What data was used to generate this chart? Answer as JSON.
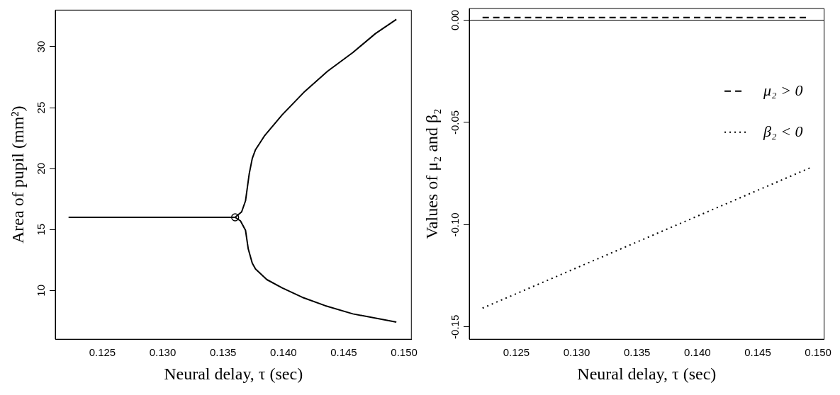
{
  "chart_data": [
    {
      "type": "line",
      "xlabel": "Neural delay, τ (sec)",
      "ylabel": "Area of pupil (mm²)",
      "xlim": [
        0.1211,
        0.1506
      ],
      "ylim": [
        6,
        33
      ],
      "xticks": [
        {
          "value": 0.125,
          "label": "0.125"
        },
        {
          "value": 0.13,
          "label": "0.130"
        },
        {
          "value": 0.135,
          "label": "0.135"
        },
        {
          "value": 0.14,
          "label": "0.140"
        },
        {
          "value": 0.145,
          "label": "0.145"
        },
        {
          "value": 0.15,
          "label": "0.150"
        }
      ],
      "yticks": [
        10,
        15,
        20,
        25,
        30
      ],
      "grid": false,
      "legend": false,
      "series": [
        {
          "type": "line",
          "color": "#000000",
          "line_style": "solid",
          "marker": "none",
          "x": [
            0.1222,
            0.136
          ],
          "values": [
            16.0,
            16.0
          ]
        },
        {
          "type": "line",
          "color": "#000000",
          "line_style": "solid",
          "marker": "none",
          "x": [
            0.136,
            0.13654,
            0.13686,
            0.13717,
            0.13742,
            0.13769,
            0.13842,
            0.13989,
            0.14177,
            0.14365,
            0.14575,
            0.14763,
            0.14936
          ],
          "values": [
            16.0,
            16.45,
            17.35,
            19.58,
            20.83,
            21.55,
            22.67,
            24.4,
            26.33,
            27.98,
            29.52,
            31.08,
            32.24
          ]
        },
        {
          "type": "line",
          "color": "#000000",
          "line_style": "solid",
          "marker": "none",
          "x": [
            0.136,
            0.13644,
            0.13686,
            0.13709,
            0.13742,
            0.13769,
            0.13863,
            0.13989,
            0.14156,
            0.14344,
            0.14575,
            0.14936
          ],
          "values": [
            16.0,
            15.71,
            14.94,
            13.4,
            12.24,
            11.76,
            10.89,
            10.21,
            9.44,
            8.76,
            8.08,
            7.41
          ]
        },
        {
          "type": "scatter",
          "color": "#000000",
          "marker": "circle",
          "x": [
            0.136
          ],
          "values": [
            16.0
          ]
        }
      ]
    },
    {
      "type": "line",
      "xlabel": "Neural delay, τ (sec)",
      "ylabel": "Values of μ₂ and β₂",
      "xlim": [
        0.1211,
        0.1505
      ],
      "ylim": [
        -0.156,
        0.0057
      ],
      "xticks": [
        {
          "value": 0.125,
          "label": "0.125"
        },
        {
          "value": 0.13,
          "label": "0.130"
        },
        {
          "value": 0.135,
          "label": "0.135"
        },
        {
          "value": 0.14,
          "label": "0.140"
        },
        {
          "value": 0.145,
          "label": "0.145"
        },
        {
          "value": 0.15,
          "label": "0.150"
        }
      ],
      "yticks": [
        {
          "value": 0,
          "label": "0.00"
        },
        {
          "value": -0.05,
          "label": "-0.05"
        },
        {
          "value": -0.1,
          "label": "-0.10"
        },
        {
          "value": -0.15,
          "label": "-0.15"
        }
      ],
      "grid": false,
      "legend": "right",
      "ref_lines": [
        {
          "axis": "y",
          "value": 0,
          "color": "#000000",
          "line_style": "solid"
        }
      ],
      "series": [
        {
          "type": "line",
          "name": "μ₂ > 0",
          "color": "#000000",
          "line_style": "dashed",
          "marker": "none",
          "x": [
            0.1222,
            0.149
          ],
          "values": [
            0.0013,
            0.0013
          ]
        },
        {
          "type": "line",
          "name": "β₂ < 0",
          "color": "#000000",
          "line_style": "dotted",
          "marker": "none",
          "x": [
            0.1222,
            0.1493
          ],
          "values": [
            -0.1408,
            -0.0723
          ]
        }
      ]
    }
  ]
}
